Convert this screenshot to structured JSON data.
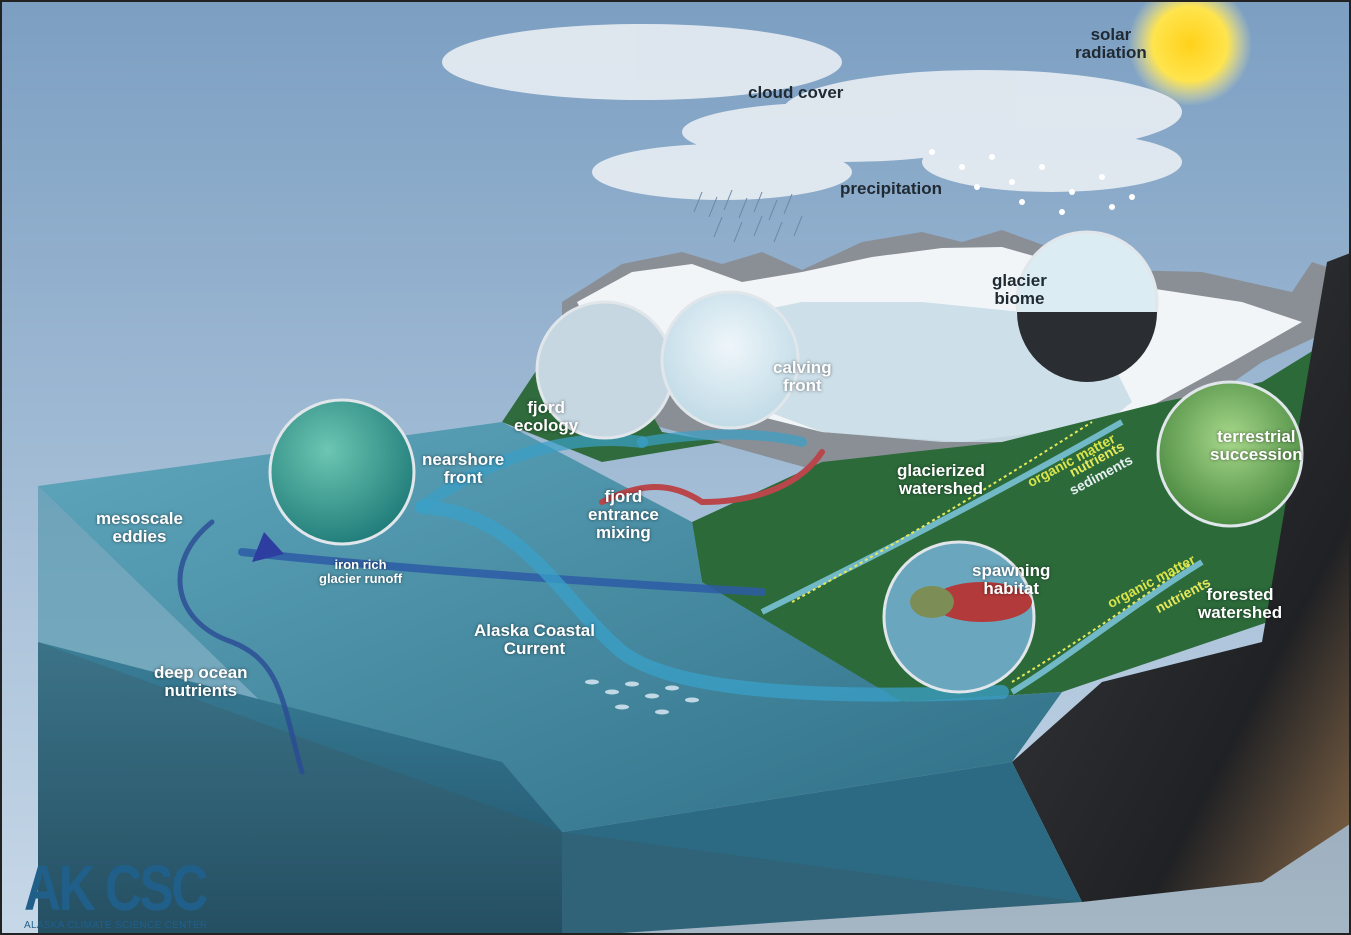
{
  "labels": {
    "solar_radiation": "solar\nradiation",
    "cloud_cover": "cloud cover",
    "precipitation": "precipitation",
    "glacier_biome": "glacier\nbiome",
    "calving_front": "calving\nfront",
    "fjord_ecology": "fjord\necology",
    "nearshore_front": "nearshore\nfront",
    "fjord_entrance_mixing": "fjord\nentrance\nmixing",
    "glacierized_watershed": "glacierized\nwatershed",
    "terrestrial_succession": "terrestrial\nsuccession",
    "mesoscale_eddies": "mesoscale\neddies",
    "iron_rich_runoff": "iron rich\nglacier runoff",
    "alaska_coastal_current": "Alaska Coastal\nCurrent",
    "deep_ocean_nutrients": "deep ocean\nnutrients",
    "spawning_habitat": "spawning\nhabitat",
    "forested_watershed": "forested\nwatershed",
    "organic_matter_1": "organic matter",
    "nutrients_1": "nutrients",
    "sediments": "sediments",
    "organic_matter_2": "organic matter",
    "nutrients_2": "nutrients"
  },
  "logo": {
    "main": "AK CSC",
    "sub": "ALASKA CLIMATE SCIENCE CENTER"
  },
  "colors": {
    "sky_top": "#7aa0c4",
    "sky_bottom": "#c3d6e8",
    "ocean": "#2f6f86",
    "current": "#3aa0c8",
    "warm_arrow": "#b8464a",
    "trace_yellow": "#e6e85a",
    "logo_blue": "#1f5f8a"
  }
}
